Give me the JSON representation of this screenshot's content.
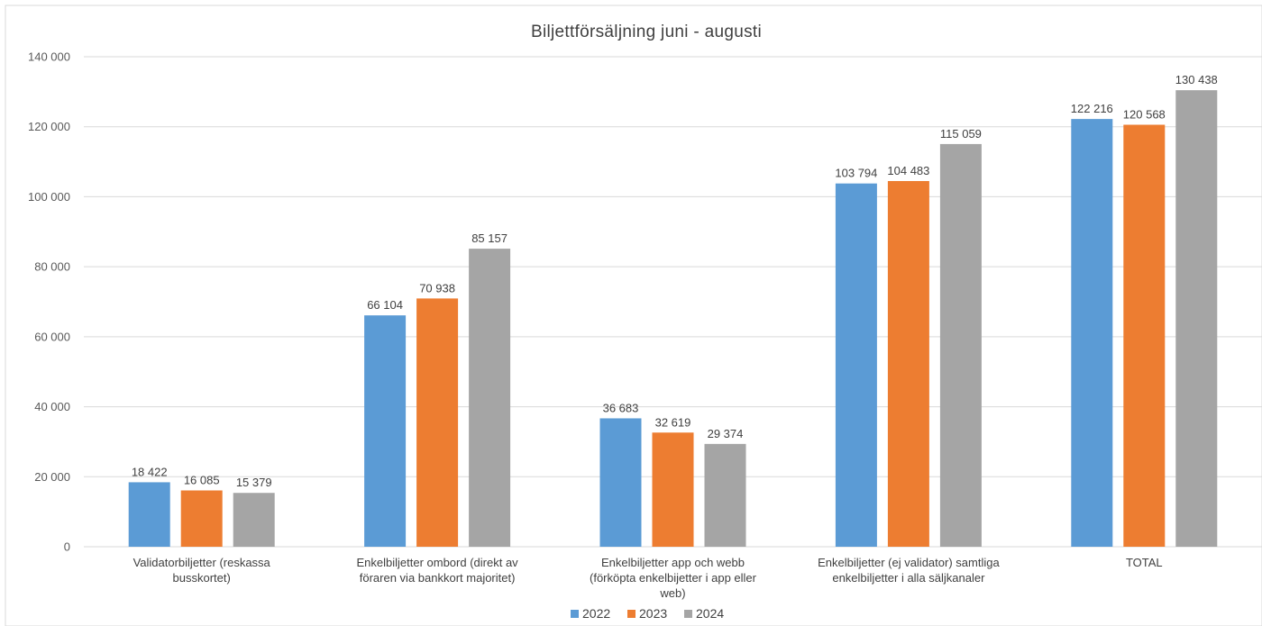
{
  "chart_data": {
    "type": "bar",
    "title": "Biljettförsäljning juni - augusti",
    "xlabel": "",
    "ylabel": "",
    "ylim": [
      0,
      140000
    ],
    "yticks": [
      0,
      20000,
      40000,
      60000,
      80000,
      100000,
      120000,
      140000
    ],
    "ytick_labels": [
      "0",
      "20 000",
      "40 000",
      "60 000",
      "80 000",
      "100 000",
      "120 000",
      "140 000"
    ],
    "grid": true,
    "legend_position": "bottom",
    "categories": [
      [
        "Validatorbiljetter (reskassa",
        "busskortet)"
      ],
      [
        "Enkelbiljetter ombord (direkt av",
        "föraren via bankkort majoritet)"
      ],
      [
        "Enkelbiljetter app och webb",
        "(förköpta enkelbijetter i app eller",
        "web)"
      ],
      [
        "Enkelbiljetter (ej validator) samtliga",
        "enkelbiljetter i alla säljkanaler"
      ],
      [
        "TOTAL"
      ]
    ],
    "series": [
      {
        "name": "2022",
        "color": "#5b9bd5",
        "values": [
          18422,
          66104,
          36683,
          103794,
          122216
        ],
        "labels": [
          "18 422",
          "66 104",
          "36 683",
          "103 794",
          "122 216"
        ]
      },
      {
        "name": "2023",
        "color": "#ed7d31",
        "values": [
          16085,
          70938,
          32619,
          104483,
          120568
        ],
        "labels": [
          "16 085",
          "70 938",
          "32 619",
          "104 483",
          "120 568"
        ]
      },
      {
        "name": "2024",
        "color": "#a5a5a5",
        "values": [
          15379,
          85157,
          29374,
          115059,
          130438
        ],
        "labels": [
          "15 379",
          "85 157",
          "29 374",
          "115 059",
          "130 438"
        ]
      }
    ]
  }
}
